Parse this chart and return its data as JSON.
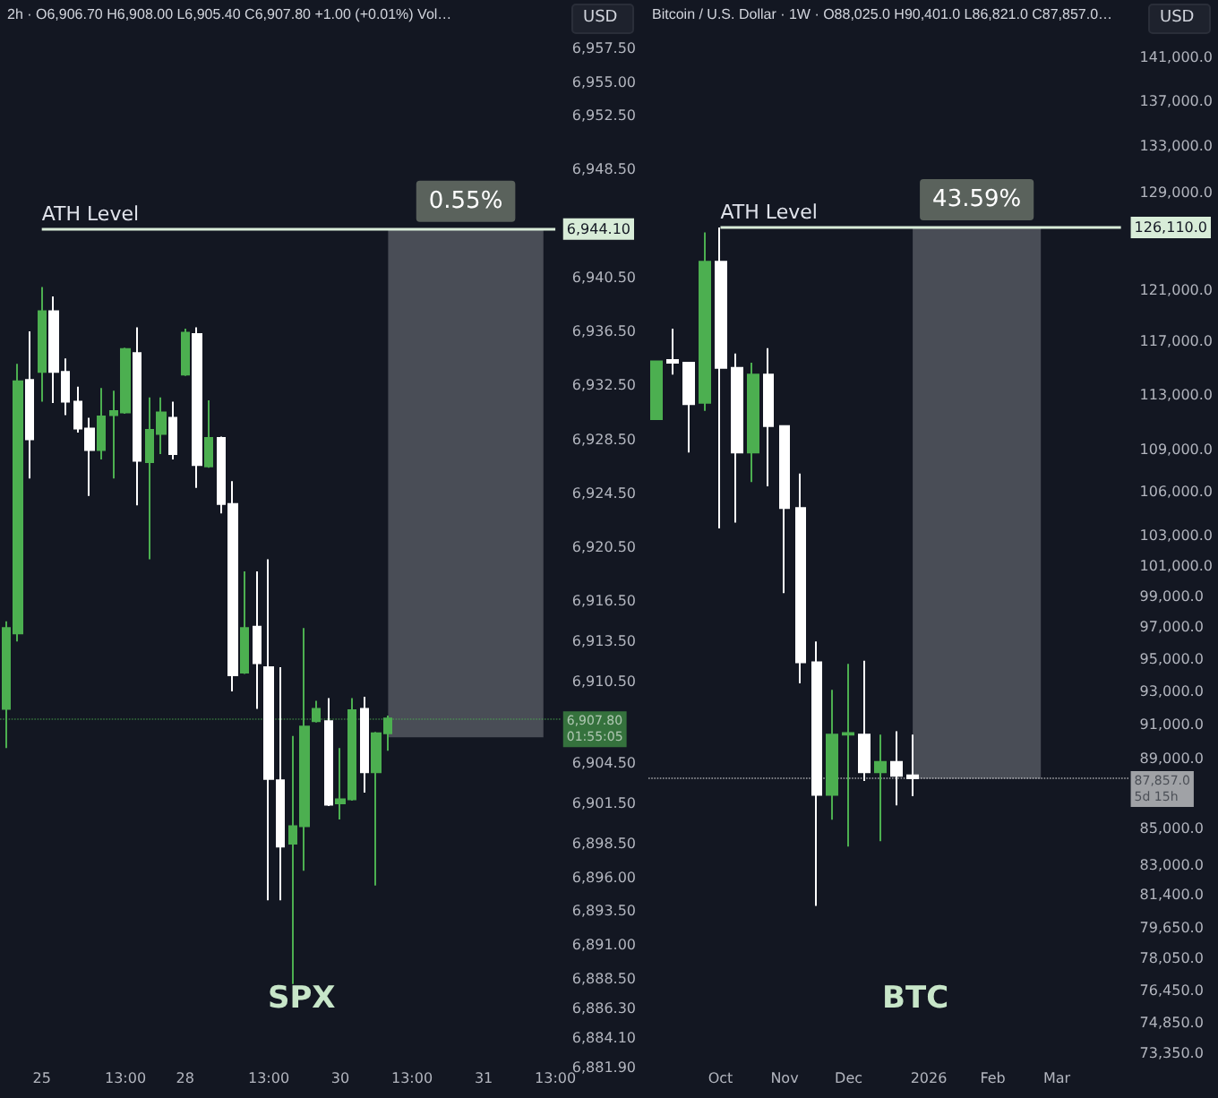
{
  "chart_data": [
    {
      "type": "candlestick",
      "title": "2h · O6,906.70 H6,908.00 L6,905.40 C6,907.80 +1.00 (+0.01%) Vol…",
      "categories": [
        null,
        null,
        null,
        "25",
        null,
        null,
        null,
        null,
        null,
        null,
        "13:00",
        null,
        null,
        null,
        null,
        "28",
        null,
        null,
        null,
        null,
        null,
        null,
        "13:00",
        null,
        null,
        null,
        null,
        null,
        "30",
        null,
        null,
        null,
        null,
        null,
        "13:00",
        null,
        null,
        null,
        null,
        null,
        "31",
        null,
        null,
        null,
        null,
        null,
        "13:00"
      ],
      "ohlc": [
        [
          6908.5,
          6915.0,
          6905.6,
          6914.5
        ],
        [
          6914.1,
          6934.1,
          6913.5,
          6932.8
        ],
        [
          6932.9,
          6936.5,
          6925.6,
          6928.5
        ],
        [
          6933.5,
          6939.8,
          6931.3,
          6938.0
        ],
        [
          6938.0,
          6939.1,
          6931.2,
          6933.5
        ],
        [
          6933.5,
          6934.5,
          6930.3,
          6931.3
        ],
        [
          6931.3,
          6932.4,
          6929.0,
          6929.3
        ],
        [
          6929.3,
          6930.1,
          6924.3,
          6927.7
        ],
        [
          6927.7,
          6932.3,
          6927.0,
          6930.2
        ],
        [
          6930.3,
          6932.1,
          6925.6,
          6930.6
        ],
        [
          6930.5,
          6935.3,
          6930.4,
          6935.2
        ],
        [
          6934.9,
          6936.8,
          6923.6,
          6926.9
        ],
        [
          6926.8,
          6931.6,
          6919.6,
          6929.2
        ],
        [
          6928.9,
          6931.6,
          6927.4,
          6930.5
        ],
        [
          6930.1,
          6931.3,
          6927.0,
          6927.4
        ],
        [
          6933.3,
          6936.7,
          6933.2,
          6936.4
        ],
        [
          6936.3,
          6936.8,
          6924.9,
          6926.6
        ],
        [
          6926.5,
          6931.4,
          6926.4,
          6928.6
        ],
        [
          6928.6,
          6928.7,
          6923.0,
          6923.7
        ],
        [
          6923.7,
          6925.4,
          6909.8,
          6911.0
        ],
        [
          6911.2,
          6918.7,
          6911.1,
          6914.5
        ],
        [
          6914.6,
          6918.7,
          6908.5,
          6911.9
        ],
        [
          6911.6,
          6919.6,
          6894.3,
          6903.3
        ],
        [
          6903.2,
          6911.6,
          6894.3,
          6898.3
        ],
        [
          6898.5,
          6906.5,
          6888.1,
          6899.8
        ],
        [
          6899.8,
          6914.5,
          6896.5,
          6907.2
        ],
        [
          6907.6,
          6909.1,
          6907.5,
          6908.5
        ],
        [
          6907.6,
          6909.3,
          6901.3,
          6901.4
        ],
        [
          6901.5,
          6905.6,
          6900.3,
          6901.8
        ],
        [
          6901.8,
          6909.3,
          6901.7,
          6908.4
        ],
        [
          6908.5,
          6909.4,
          6902.3,
          6903.8
        ],
        [
          6903.8,
          6906.8,
          6895.4,
          6906.7
        ],
        [
          6906.7,
          6908.0,
          6905.4,
          6907.8
        ],
        null,
        null,
        null,
        null,
        null,
        null,
        null,
        null,
        null,
        null,
        null,
        null,
        null,
        null
      ],
      "colors": [
        "#4caf50",
        "#4caf50",
        "#ffffff",
        "#4caf50",
        "#ffffff",
        "#ffffff",
        "#ffffff",
        "#ffffff",
        "#4caf50",
        "#4caf50",
        "#4caf50",
        "#ffffff",
        "#4caf50",
        "#4caf50",
        "#ffffff",
        "#4caf50",
        "#ffffff",
        "#4caf50",
        "#ffffff",
        "#ffffff",
        "#4caf50",
        "#ffffff",
        "#ffffff",
        "#ffffff",
        "#4caf50",
        "#4caf50",
        "#4caf50",
        "#ffffff",
        "#4caf50",
        "#4caf50",
        "#ffffff",
        "#4caf50",
        "#4caf50",
        null,
        null,
        null,
        null,
        null,
        null,
        null,
        null,
        null,
        null,
        null,
        null,
        null,
        null
      ],
      "ylim": [
        6881.9,
        6957.5
      ],
      "yticks": [
        {
          "value": 6957.5,
          "label": "6,957.50"
        },
        {
          "value": 6955,
          "label": "6,955.00"
        },
        {
          "value": 6952.5,
          "label": "6,952.50"
        },
        {
          "value": 6948.5,
          "label": "6,948.50"
        },
        {
          "value": 6940.5,
          "label": "6,940.50"
        },
        {
          "value": 6936.5,
          "label": "6,936.50"
        },
        {
          "value": 6932.5,
          "label": "6,932.50"
        },
        {
          "value": 6928.5,
          "label": "6,928.50"
        },
        {
          "value": 6924.5,
          "label": "6,924.50"
        },
        {
          "value": 6920.5,
          "label": "6,920.50"
        },
        {
          "value": 6916.5,
          "label": "6,916.50"
        },
        {
          "value": 6913.5,
          "label": "6,913.50"
        },
        {
          "value": 6910.5,
          "label": "6,910.50"
        },
        {
          "value": 6904.5,
          "label": "6,904.50"
        },
        {
          "value": 6901.5,
          "label": "6,901.50"
        },
        {
          "value": 6898.5,
          "label": "6,898.50"
        },
        {
          "value": 6896,
          "label": "6,896.00"
        },
        {
          "value": 6893.5,
          "label": "6,893.50"
        },
        {
          "value": 6891,
          "label": "6,891.00"
        },
        {
          "value": 6888.5,
          "label": "6,888.50"
        },
        {
          "value": 6886.3,
          "label": "6,886.30"
        },
        {
          "value": 6884.1,
          "label": "6,884.10"
        },
        {
          "value": 6881.9,
          "label": "6,881.90"
        }
      ],
      "ref_lines": [
        {
          "axis": "y",
          "value": 6944.1,
          "label": "ATH Level",
          "color": "#d8ecd8"
        },
        {
          "axis": "y",
          "value": 6907.8,
          "label": "6,907.80",
          "color": "#4caf50",
          "line_style": "dotted"
        }
      ],
      "bands": [
        {
          "axis": "y",
          "from": 6906.4,
          "to": 6944.1,
          "label": "0.55%",
          "color": "#50535c"
        }
      ],
      "annotations": [
        "USD",
        "SPX",
        "6,944.10",
        "01:55:05"
      ]
    },
    {
      "type": "candlestick",
      "title": "Bitcoin / U.S. Dollar · 1W · O88,025.0 H90,401.0 L86,821.0 C87,857.0…",
      "categories": [
        null,
        null,
        null,
        null,
        "Oct",
        null,
        null,
        null,
        "Nov",
        null,
        null,
        null,
        "Dec",
        null,
        null,
        null,
        null,
        "2026",
        null,
        null,
        null,
        "Feb",
        null,
        null,
        null,
        "Mar",
        null,
        null,
        null,
        null
      ],
      "ohlc": [
        [
          111200,
          115500,
          111200,
          115500
        ],
        [
          115600,
          118000,
          114500,
          115400
        ],
        [
          115400,
          115400,
          108800,
          112300
        ],
        [
          112400,
          125700,
          111800,
          123300
        ],
        [
          123300,
          126110,
          103500,
          115000
        ],
        [
          115000,
          116100,
          103900,
          108800
        ],
        [
          108800,
          115400,
          106700,
          114500
        ],
        [
          114500,
          116500,
          106400,
          110700
        ],
        [
          110700,
          110700,
          99200,
          104900
        ],
        [
          104900,
          107300,
          93500,
          94800
        ],
        [
          94800,
          96100,
          80800,
          86900
        ],
        [
          86900,
          93100,
          85500,
          90400
        ],
        [
          90400,
          94700,
          84000,
          90500
        ],
        [
          90400,
          94900,
          87700,
          88200
        ],
        [
          88200,
          90400,
          84300,
          88800
        ],
        [
          88800,
          90600,
          86300,
          88000
        ],
        [
          88025,
          90401,
          86821,
          87857
        ],
        null,
        null,
        null,
        null,
        null,
        null,
        null,
        null,
        null,
        null,
        null,
        null,
        null
      ],
      "colors": [
        "#4caf50",
        "#ffffff",
        "#ffffff",
        "#4caf50",
        "#ffffff",
        "#ffffff",
        "#4caf50",
        "#ffffff",
        "#ffffff",
        "#ffffff",
        "#ffffff",
        "#4caf50",
        "#4caf50",
        "#ffffff",
        "#4caf50",
        "#ffffff",
        "#ffffff",
        null,
        null,
        null,
        null,
        null,
        null,
        null,
        null,
        null,
        null,
        null,
        null,
        null
      ],
      "log": "y",
      "ylim": [
        73350,
        141000
      ],
      "yticks": [
        {
          "value": 141000,
          "label": "141,000.0"
        },
        {
          "value": 137000,
          "label": "137,000.0"
        },
        {
          "value": 133000,
          "label": "133,000.0"
        },
        {
          "value": 129000,
          "label": "129,000.0"
        },
        {
          "value": 121000,
          "label": "121,000.0"
        },
        {
          "value": 117000,
          "label": "117,000.0"
        },
        {
          "value": 113000,
          "label": "113,000.0"
        },
        {
          "value": 109000,
          "label": "109,000.0"
        },
        {
          "value": 106000,
          "label": "106,000.0"
        },
        {
          "value": 103000,
          "label": "103,000.0"
        },
        {
          "value": 101000,
          "label": "101,000.0"
        },
        {
          "value": 99000,
          "label": "99,000.0"
        },
        {
          "value": 97000,
          "label": "97,000.0"
        },
        {
          "value": 95000,
          "label": "95,000.0"
        },
        {
          "value": 93000,
          "label": "93,000.0"
        },
        {
          "value": 91000,
          "label": "91,000.0"
        },
        {
          "value": 89000,
          "label": "89,000.0"
        },
        {
          "value": 85000,
          "label": "85,000.0"
        },
        {
          "value": 83000,
          "label": "83,000.0"
        },
        {
          "value": 81400,
          "label": "81,400.0"
        },
        {
          "value": 79650,
          "label": "79,650.0"
        },
        {
          "value": 78050,
          "label": "78,050.0"
        },
        {
          "value": 76450,
          "label": "76,450.0"
        },
        {
          "value": 74850,
          "label": "74,850.0"
        },
        {
          "value": 73350,
          "label": "73,350.0"
        }
      ],
      "ref_lines": [
        {
          "axis": "y",
          "value": 126110,
          "label": "ATH Level",
          "color": "#d8ecd8"
        },
        {
          "axis": "y",
          "value": 87857,
          "label": "87,857.0",
          "color": "#ffffff",
          "line_style": "dotted"
        }
      ],
      "bands": [
        {
          "axis": "y",
          "from": 87830,
          "to": 126110,
          "label": "43.59%",
          "color": "#50535c"
        }
      ],
      "annotations": [
        "USD",
        "BTC",
        "126,110.0",
        "5d 15h"
      ]
    }
  ]
}
